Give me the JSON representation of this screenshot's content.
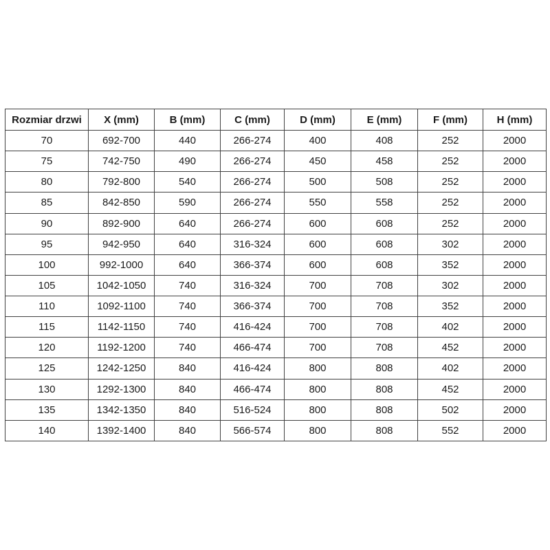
{
  "table": {
    "headers": [
      "Rozmiar drzwi",
      "X (mm)",
      "B (mm)",
      "C (mm)",
      "D (mm)",
      "E (mm)",
      "F (mm)",
      "H (mm)"
    ],
    "rows": [
      [
        "70",
        "692-700",
        "440",
        "266-274",
        "400",
        "408",
        "252",
        "2000"
      ],
      [
        "75",
        "742-750",
        "490",
        "266-274",
        "450",
        "458",
        "252",
        "2000"
      ],
      [
        "80",
        "792-800",
        "540",
        "266-274",
        "500",
        "508",
        "252",
        "2000"
      ],
      [
        "85",
        "842-850",
        "590",
        "266-274",
        "550",
        "558",
        "252",
        "2000"
      ],
      [
        "90",
        "892-900",
        "640",
        "266-274",
        "600",
        "608",
        "252",
        "2000"
      ],
      [
        "95",
        "942-950",
        "640",
        "316-324",
        "600",
        "608",
        "302",
        "2000"
      ],
      [
        "100",
        "992-1000",
        "640",
        "366-374",
        "600",
        "608",
        "352",
        "2000"
      ],
      [
        "105",
        "1042-1050",
        "740",
        "316-324",
        "700",
        "708",
        "302",
        "2000"
      ],
      [
        "110",
        "1092-1100",
        "740",
        "366-374",
        "700",
        "708",
        "352",
        "2000"
      ],
      [
        "115",
        "1142-1150",
        "740",
        "416-424",
        "700",
        "708",
        "402",
        "2000"
      ],
      [
        "120",
        "1192-1200",
        "740",
        "466-474",
        "700",
        "708",
        "452",
        "2000"
      ],
      [
        "125",
        "1242-1250",
        "840",
        "416-424",
        "800",
        "808",
        "402",
        "2000"
      ],
      [
        "130",
        "1292-1300",
        "840",
        "466-474",
        "800",
        "808",
        "452",
        "2000"
      ],
      [
        "135",
        "1342-1350",
        "840",
        "516-524",
        "800",
        "808",
        "502",
        "2000"
      ],
      [
        "140",
        "1392-1400",
        "840",
        "566-574",
        "800",
        "808",
        "552",
        "2000"
      ]
    ],
    "colors": {
      "border": "#404040",
      "text": "#1a1a1a",
      "background": "#ffffff"
    }
  }
}
